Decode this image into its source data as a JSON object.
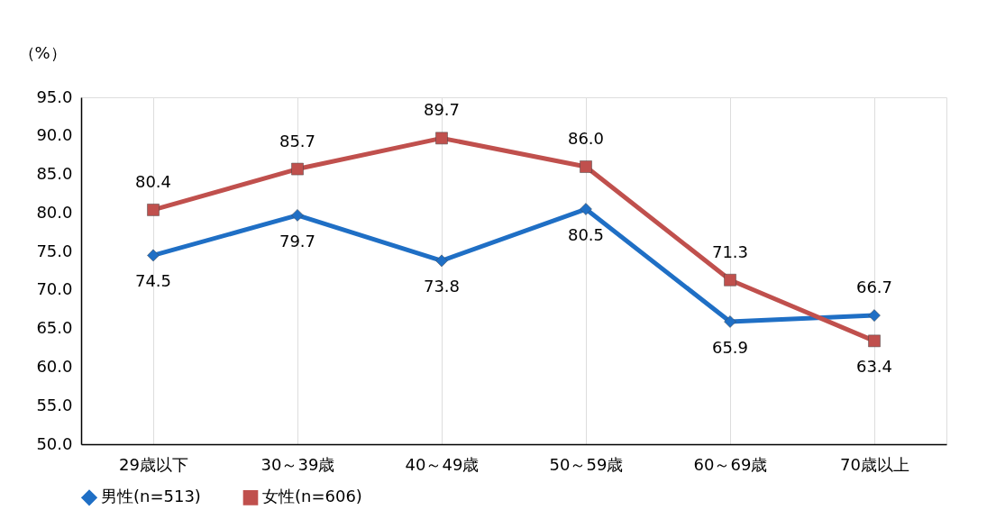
{
  "chart_data": {
    "type": "line",
    "ylabel": "（%）",
    "categories": [
      "29歳以下",
      "30～39歳",
      "40～49歳",
      "50～59歳",
      "60～69歳",
      "70歳以上"
    ],
    "series": [
      {
        "name": "男性(n=513)",
        "color": "#1f6fc5",
        "marker": "diamond",
        "values": [
          74.5,
          79.7,
          73.8,
          80.5,
          65.9,
          66.7
        ],
        "value_labels": [
          "74.5",
          "79.7",
          "73.8",
          "80.5",
          "65.9",
          "66.7"
        ]
      },
      {
        "name": "女性(n=606)",
        "color": "#c0504d",
        "marker": "square",
        "values": [
          80.4,
          85.7,
          89.7,
          86.0,
          71.3,
          63.4
        ],
        "value_labels": [
          "80.4",
          "85.7",
          "89.7",
          "86.0",
          "71.3",
          "63.4"
        ]
      }
    ],
    "ylim": [
      50,
      95
    ],
    "yticks": [
      {
        "value": 50,
        "label": "50.0"
      },
      {
        "value": 55,
        "label": "55.0"
      },
      {
        "value": 60,
        "label": "60.0"
      },
      {
        "value": 65,
        "label": "65.0"
      },
      {
        "value": 70,
        "label": "70.0"
      },
      {
        "value": 75,
        "label": "75.0"
      },
      {
        "value": 80,
        "label": "80.0"
      },
      {
        "value": 85,
        "label": "85.0"
      },
      {
        "value": 90,
        "label": "90.0"
      },
      {
        "value": 95,
        "label": "95.0"
      }
    ],
    "grid": "x",
    "legend": "bottom",
    "line_style": "solid"
  }
}
